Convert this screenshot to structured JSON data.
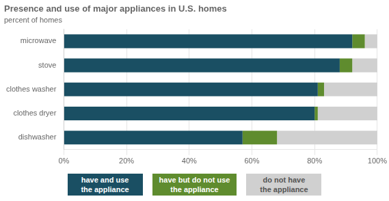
{
  "chart_data": {
    "type": "bar",
    "orientation": "horizontal",
    "stacked": true,
    "title": "Presence and use of major appliances in U.S. homes",
    "subtitle": "percent of homes",
    "categories": [
      "microwave",
      "stove",
      "clothes washer",
      "clothes dryer",
      "dishwasher"
    ],
    "series": [
      {
        "name": "have and use\nthe appliance",
        "color": "#1a4f63",
        "values": [
          92,
          88,
          81,
          80,
          57
        ]
      },
      {
        "name": "have but do not use\nthe appliance",
        "color": "#5f8c2e",
        "values": [
          4,
          4,
          2,
          1,
          11
        ]
      },
      {
        "name": "do not have\nthe appliance",
        "color": "#d0d0d0",
        "values": [
          4,
          8,
          17,
          19,
          32
        ]
      }
    ],
    "xlim": [
      0,
      100
    ],
    "xticks": [
      {
        "value": 0,
        "label": "0%"
      },
      {
        "value": 20,
        "label": "20%"
      },
      {
        "value": 40,
        "label": "40%"
      },
      {
        "value": 60,
        "label": "60%"
      },
      {
        "value": 80,
        "label": "80%"
      },
      {
        "value": 100,
        "label": "100%"
      }
    ],
    "grid": true,
    "legend": "bottom"
  }
}
